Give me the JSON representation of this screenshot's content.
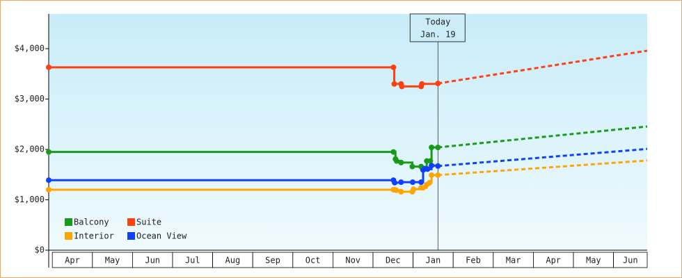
{
  "chart_data": {
    "type": "step",
    "xlim": [
      -0.09,
      14.84
    ],
    "ylim": [
      0,
      4690
    ],
    "xticks": [
      {
        "value": 0.5,
        "label": "Apr"
      },
      {
        "value": 1.5,
        "label": "May"
      },
      {
        "value": 2.5,
        "label": "Jun"
      },
      {
        "value": 3.5,
        "label": "Jul"
      },
      {
        "value": 4.5,
        "label": "Aug"
      },
      {
        "value": 5.5,
        "label": "Sep"
      },
      {
        "value": 6.5,
        "label": "Oct"
      },
      {
        "value": 7.5,
        "label": "Nov"
      },
      {
        "value": 8.5,
        "label": "Dec"
      },
      {
        "value": 9.5,
        "label": "Jan"
      },
      {
        "value": 10.5,
        "label": "Feb"
      },
      {
        "value": 11.5,
        "label": "Mar"
      },
      {
        "value": 12.5,
        "label": "Apr"
      },
      {
        "value": 13.5,
        "label": "May"
      },
      {
        "value": 14.5,
        "label": "Jun"
      }
    ],
    "yticks": [
      {
        "value": 0,
        "label": "$0"
      },
      {
        "value": 1000,
        "label": "$1,000"
      },
      {
        "value": 2000,
        "label": "$2,000"
      },
      {
        "value": 3000,
        "label": "$3,000"
      },
      {
        "value": 4000,
        "label": "$4,000"
      }
    ],
    "today": {
      "x": 9.62,
      "label": [
        "Today",
        "Jan. 19"
      ]
    },
    "projection_x": [
      9.62,
      14.84
    ],
    "series": [
      {
        "name": "Balcony",
        "color": "#1a9a1a",
        "x": [
          -0.09,
          8.51,
          8.56,
          8.59,
          8.7,
          8.98,
          9.2,
          9.24,
          9.34,
          9.43,
          9.46,
          9.62
        ],
        "values": [
          1950,
          1950,
          1810,
          1770,
          1740,
          1660,
          1660,
          1610,
          1770,
          1770,
          2040,
          2040
        ],
        "projection": [
          2040,
          2455
        ]
      },
      {
        "name": "Suite",
        "color": "#ff4010",
        "x": [
          -0.09,
          8.51,
          8.53,
          8.7,
          8.72,
          9.2,
          9.22,
          9.62
        ],
        "values": [
          3630,
          3630,
          3300,
          3300,
          3250,
          3250,
          3300,
          3310
        ],
        "projection": [
          3310,
          3960
        ]
      },
      {
        "name": "Interior",
        "color": "#ffa500",
        "x": [
          -0.09,
          8.51,
          8.54,
          8.58,
          8.7,
          8.98,
          9.01,
          9.2,
          9.25,
          9.34,
          9.41,
          9.46,
          9.62
        ],
        "values": [
          1200,
          1200,
          1200,
          1190,
          1160,
          1160,
          1210,
          1240,
          1240,
          1300,
          1340,
          1490,
          1490
        ],
        "projection": [
          1490,
          1780
        ]
      },
      {
        "name": "Ocean View",
        "color": "#1040ff",
        "x": [
          -0.09,
          8.51,
          8.54,
          8.7,
          8.99,
          9.2,
          9.25,
          9.29,
          9.36,
          9.46,
          9.62
        ],
        "values": [
          1390,
          1390,
          1340,
          1350,
          1350,
          1350,
          1590,
          1620,
          1610,
          1680,
          1670
        ],
        "projection": [
          1670,
          2010
        ]
      }
    ]
  }
}
